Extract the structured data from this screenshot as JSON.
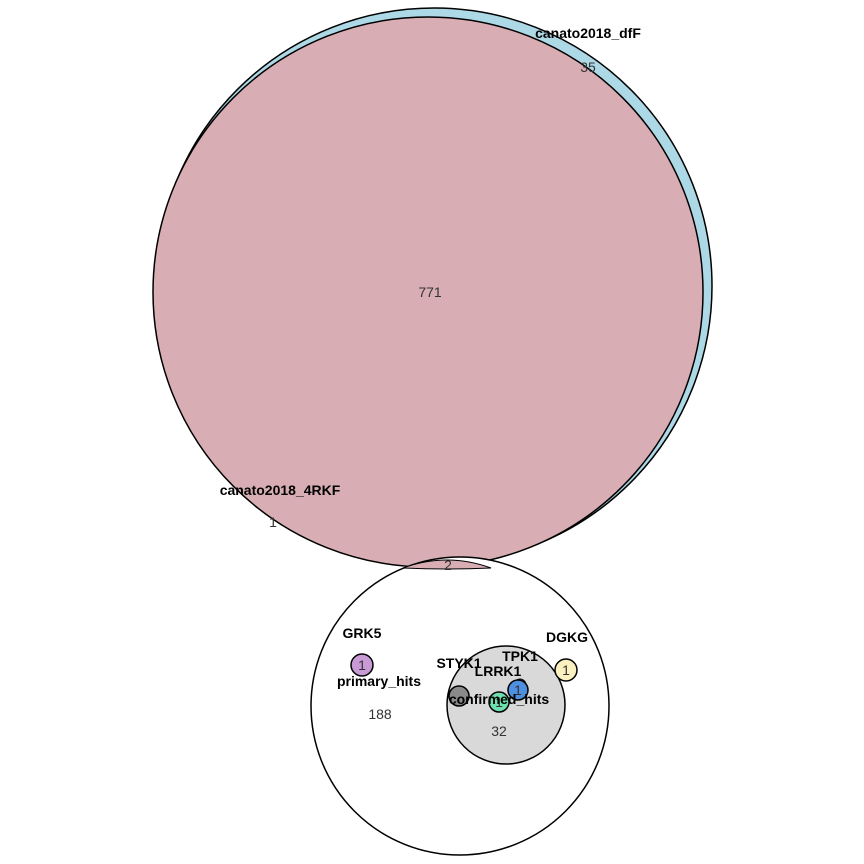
{
  "colors": {
    "dff_fill": "#add8e6",
    "rkf_fill": "#d8aeb4",
    "primary_fill": "#ffffff",
    "confirmed_fill": "#d9d9d9",
    "grk5_fill": "#c89ad6",
    "dgkg_fill": "#fbf1c0",
    "tpk1_fill": "#cd8f9e",
    "lrrk1_fill": "#4f8fe0",
    "styk1_fill": "#8a8a8a",
    "confirmed_inner_fill": "#6ee0b0",
    "outline": "#000000"
  },
  "sets": {
    "dff": {
      "label": "canato2018_dfF",
      "count": "35"
    },
    "rkf": {
      "label": "canato2018_4RKF",
      "count": "1"
    },
    "dff_rkf_overlap": {
      "count": "771"
    },
    "rkf_primary_overlap": {
      "count": "2"
    },
    "primary": {
      "label": "primary_hits",
      "count": "188"
    },
    "confirmed": {
      "label": "confirmed_hits",
      "count": "32"
    },
    "grk5": {
      "label": "GRK5",
      "count": "1"
    },
    "dgkg": {
      "label": "DGKG",
      "count": "1"
    },
    "tpk1": {
      "label": "TPK1"
    },
    "lrrk1": {
      "label": "LRRK1",
      "count": "1"
    },
    "styk1": {
      "label": "STYK1"
    },
    "confirmed_inner": {
      "count": "1"
    }
  }
}
